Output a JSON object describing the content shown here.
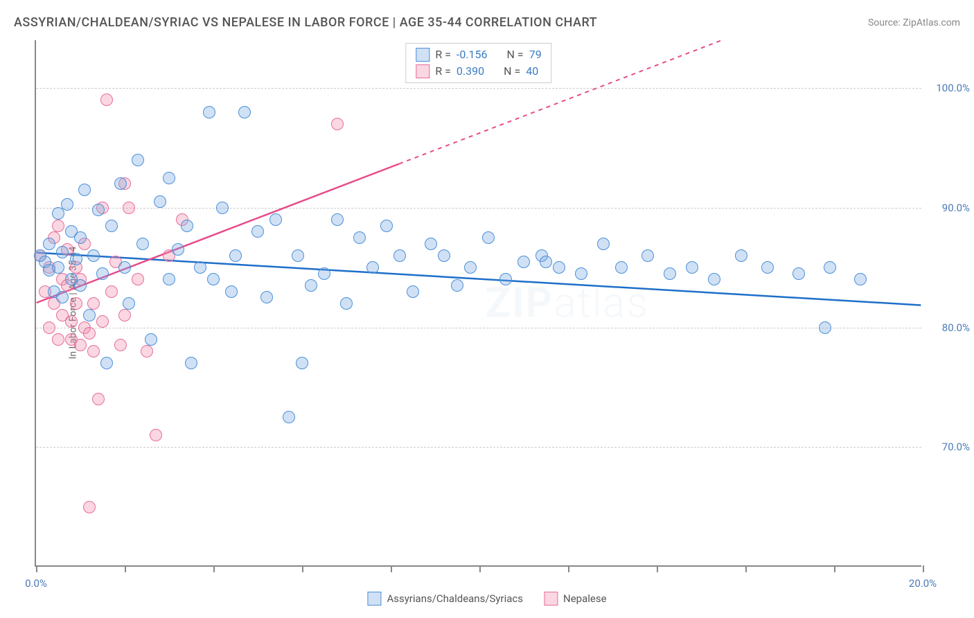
{
  "header": {
    "title": "ASSYRIAN/CHALDEAN/SYRIAC VS NEPALESE IN LABOR FORCE | AGE 35-44 CORRELATION CHART",
    "source": "Source: ZipAtlas.com"
  },
  "axes": {
    "y_label": "In Labor Force | Age 35-44",
    "x_range": [
      0,
      20
    ],
    "y_range": [
      60,
      104
    ],
    "x_ticks": [
      0,
      2,
      4,
      6,
      8,
      10,
      12,
      14,
      16,
      18,
      20
    ],
    "x_tick_labels": {
      "0": "0.0%",
      "20": "20.0%"
    },
    "y_gridlines": [
      70,
      80,
      90,
      100
    ],
    "y_tick_labels": {
      "70": "70.0%",
      "80": "80.0%",
      "90": "90.0%",
      "100": "100.0%"
    },
    "grid_color": "#cccccc",
    "axis_color": "#888888",
    "tick_label_color": "#4a7ab8"
  },
  "series": {
    "blue": {
      "name": "Assyrians/Chaldeans/Syriacs",
      "fill": "rgba(120, 170, 225, 0.35)",
      "stroke": "#4a8fd8",
      "trend_color": "#1e6fc9",
      "trend": {
        "x1": 0,
        "y1": 86.2,
        "x2": 20,
        "y2": 81.8,
        "dashed_from_x": null
      },
      "R": "-0.156",
      "N": "79",
      "points": [
        [
          0.1,
          86.0
        ],
        [
          0.2,
          85.5
        ],
        [
          0.3,
          84.8
        ],
        [
          0.3,
          87.0
        ],
        [
          0.4,
          83.0
        ],
        [
          0.5,
          89.5
        ],
        [
          0.5,
          85.0
        ],
        [
          0.6,
          82.5
        ],
        [
          0.6,
          86.3
        ],
        [
          0.7,
          90.3
        ],
        [
          0.8,
          84.0
        ],
        [
          0.8,
          88.0
        ],
        [
          0.9,
          85.7
        ],
        [
          1.0,
          83.5
        ],
        [
          1.0,
          87.5
        ],
        [
          1.1,
          91.5
        ],
        [
          1.2,
          81.0
        ],
        [
          1.3,
          86.0
        ],
        [
          1.4,
          89.8
        ],
        [
          1.5,
          84.5
        ],
        [
          1.6,
          77.0
        ],
        [
          1.7,
          88.5
        ],
        [
          1.9,
          92.0
        ],
        [
          2.0,
          85.0
        ],
        [
          2.1,
          82.0
        ],
        [
          2.3,
          94.0
        ],
        [
          2.4,
          87.0
        ],
        [
          2.6,
          79.0
        ],
        [
          2.8,
          90.5
        ],
        [
          3.0,
          84.0
        ],
        [
          3.0,
          92.5
        ],
        [
          3.2,
          86.5
        ],
        [
          3.4,
          88.5
        ],
        [
          3.5,
          77.0
        ],
        [
          3.7,
          85.0
        ],
        [
          3.9,
          98.0
        ],
        [
          4.0,
          84.0
        ],
        [
          4.2,
          90.0
        ],
        [
          4.4,
          83.0
        ],
        [
          4.5,
          86.0
        ],
        [
          4.7,
          98.0
        ],
        [
          5.0,
          88.0
        ],
        [
          5.2,
          82.5
        ],
        [
          5.4,
          89.0
        ],
        [
          5.7,
          72.5
        ],
        [
          5.9,
          86.0
        ],
        [
          6.0,
          77.0
        ],
        [
          6.2,
          83.5
        ],
        [
          6.5,
          84.5
        ],
        [
          6.8,
          89.0
        ],
        [
          7.0,
          82.0
        ],
        [
          7.3,
          87.5
        ],
        [
          7.6,
          85.0
        ],
        [
          7.9,
          88.5
        ],
        [
          8.2,
          86.0
        ],
        [
          8.5,
          83.0
        ],
        [
          8.9,
          87.0
        ],
        [
          9.2,
          86.0
        ],
        [
          9.5,
          83.5
        ],
        [
          9.8,
          85.0
        ],
        [
          10.2,
          87.5
        ],
        [
          10.6,
          84.0
        ],
        [
          11.0,
          85.5
        ],
        [
          11.4,
          86.0
        ],
        [
          11.8,
          85.0
        ],
        [
          12.3,
          84.5
        ],
        [
          12.8,
          87.0
        ],
        [
          13.2,
          85.0
        ],
        [
          13.8,
          86.0
        ],
        [
          14.3,
          84.5
        ],
        [
          14.8,
          85.0
        ],
        [
          15.3,
          84.0
        ],
        [
          15.9,
          86.0
        ],
        [
          16.5,
          85.0
        ],
        [
          17.2,
          84.5
        ],
        [
          17.9,
          85.0
        ],
        [
          18.6,
          84.0
        ],
        [
          17.8,
          80.0
        ],
        [
          11.5,
          85.5
        ]
      ]
    },
    "pink": {
      "name": "Nepalese",
      "fill": "rgba(240, 140, 170, 0.35)",
      "stroke": "#e76d9c",
      "trend_color": "#e84b8a",
      "trend": {
        "x1": 0,
        "y1": 82.0,
        "x2": 15.5,
        "y2": 104.0,
        "dashed_from_x": 8.2
      },
      "R": "0.390",
      "N": "40",
      "points": [
        [
          0.1,
          86.0
        ],
        [
          0.2,
          83.0
        ],
        [
          0.3,
          85.0
        ],
        [
          0.3,
          80.0
        ],
        [
          0.4,
          87.5
        ],
        [
          0.4,
          82.0
        ],
        [
          0.5,
          88.5
        ],
        [
          0.5,
          79.0
        ],
        [
          0.6,
          84.0
        ],
        [
          0.6,
          81.0
        ],
        [
          0.7,
          86.5
        ],
        [
          0.7,
          83.5
        ],
        [
          0.8,
          80.5
        ],
        [
          0.8,
          79.0
        ],
        [
          0.9,
          85.0
        ],
        [
          0.9,
          82.0
        ],
        [
          1.0,
          78.5
        ],
        [
          1.0,
          84.0
        ],
        [
          1.1,
          80.0
        ],
        [
          1.1,
          87.0
        ],
        [
          1.2,
          79.5
        ],
        [
          1.3,
          78.0
        ],
        [
          1.3,
          82.0
        ],
        [
          1.4,
          74.0
        ],
        [
          1.5,
          80.5
        ],
        [
          1.6,
          99.0
        ],
        [
          1.7,
          83.0
        ],
        [
          1.8,
          85.5
        ],
        [
          1.9,
          78.5
        ],
        [
          2.0,
          81.0
        ],
        [
          2.1,
          90.0
        ],
        [
          2.3,
          84.0
        ],
        [
          2.5,
          78.0
        ],
        [
          2.7,
          71.0
        ],
        [
          3.0,
          86.0
        ],
        [
          3.3,
          89.0
        ],
        [
          1.2,
          65.0
        ],
        [
          1.5,
          90.0
        ],
        [
          2.0,
          92.0
        ],
        [
          6.8,
          97.0
        ]
      ]
    }
  },
  "legend": {
    "R_label": "R =",
    "N_label": "N ="
  },
  "watermark": "ZIPatlas",
  "chart_type": "scatter"
}
